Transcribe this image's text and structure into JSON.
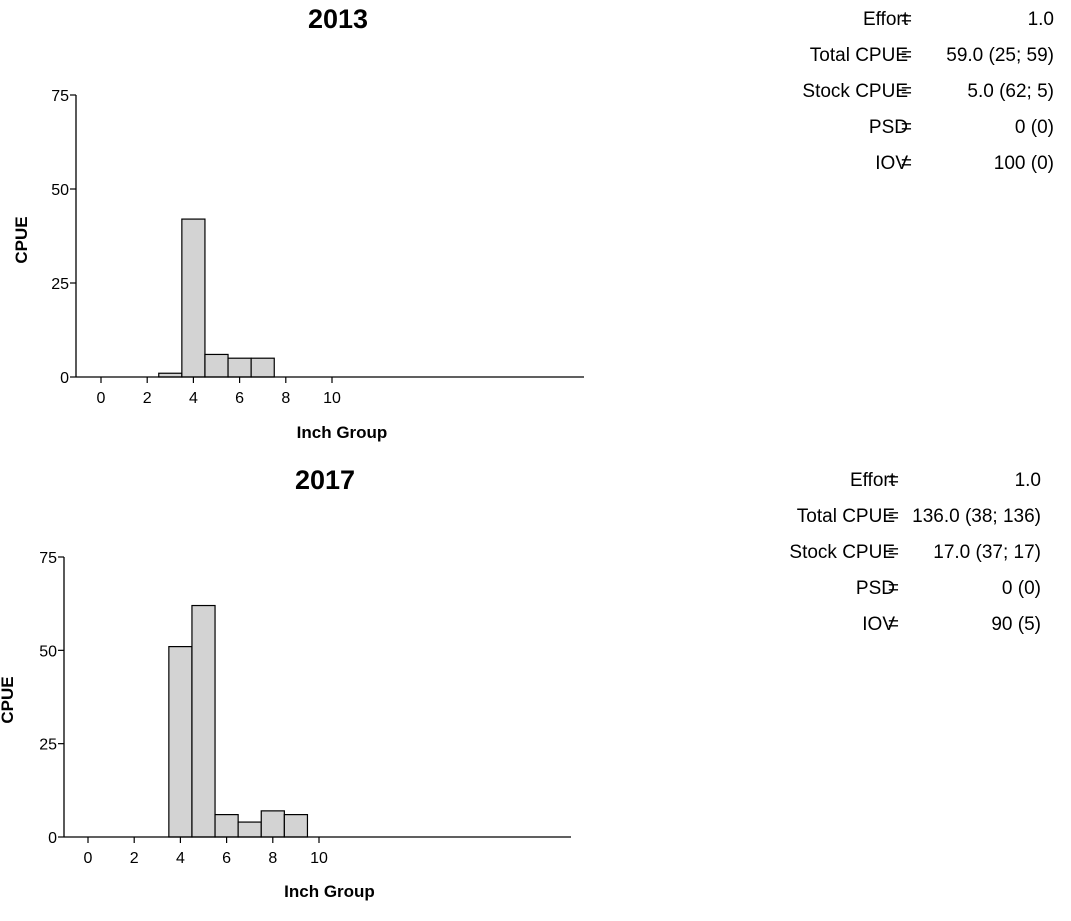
{
  "chart_data": [
    {
      "type": "bar",
      "title": "2013",
      "xlabel": "Inch Group",
      "ylabel": "CPUE",
      "x": [
        3,
        4,
        5,
        6,
        7
      ],
      "values": [
        1,
        42,
        6,
        5,
        5
      ],
      "xlim": [
        -0.4,
        10.5
      ],
      "ylim": [
        0,
        75
      ],
      "xticks": [
        0,
        2,
        4,
        6,
        8,
        10
      ],
      "yticks": [
        0,
        25,
        50,
        75
      ],
      "grid": false,
      "bar_color": "#d3d3d3",
      "stats": [
        {
          "label": "Effort",
          "value": "1.0"
        },
        {
          "label": "Total CPUE",
          "value": "59.0 (25; 59)"
        },
        {
          "label": "Stock CPUE",
          "value": "5.0 (62; 5)"
        },
        {
          "label": "PSD",
          "value": "0 (0)"
        },
        {
          "label": "IOV",
          "value": "100 (0)"
        }
      ]
    },
    {
      "type": "bar",
      "title": "2017",
      "xlabel": "Inch Group",
      "ylabel": "CPUE",
      "x": [
        4,
        5,
        6,
        7,
        8,
        9
      ],
      "values": [
        51,
        62,
        6,
        4,
        7,
        6
      ],
      "xlim": [
        -0.4,
        10.5
      ],
      "ylim": [
        0,
        75
      ],
      "xticks": [
        0,
        2,
        4,
        6,
        8,
        10
      ],
      "yticks": [
        0,
        25,
        50,
        75
      ],
      "grid": false,
      "bar_color": "#d3d3d3",
      "stats": [
        {
          "label": "Effort",
          "value": "1.0"
        },
        {
          "label": "Total CPUE",
          "value": "136.0 (38; 136)"
        },
        {
          "label": "Stock CPUE",
          "value": "17.0 (37; 17)"
        },
        {
          "label": "PSD",
          "value": "0 (0)"
        },
        {
          "label": "IOV",
          "value": "90 (5)"
        }
      ]
    }
  ]
}
